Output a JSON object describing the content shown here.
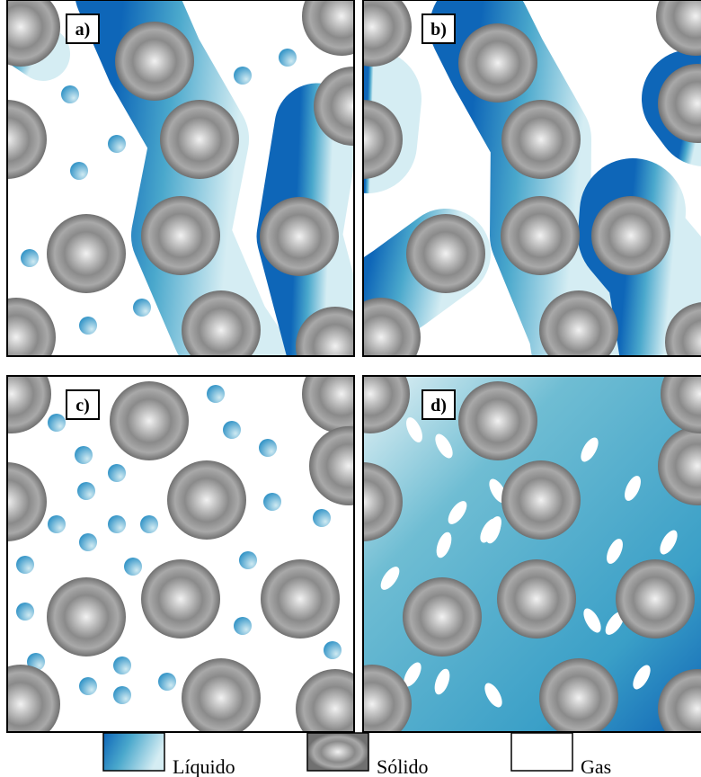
{
  "panels": [
    {
      "label": "a)"
    },
    {
      "label": "b)"
    },
    {
      "label": "c)"
    },
    {
      "label": "d)"
    }
  ],
  "legend": [
    {
      "label": "Líquido"
    },
    {
      "label": "Sólido"
    },
    {
      "label": "Gas"
    }
  ]
}
